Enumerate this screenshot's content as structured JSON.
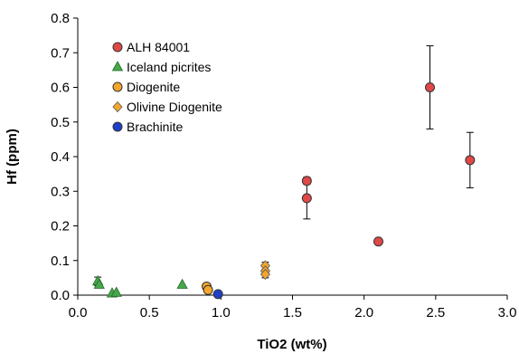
{
  "chart_data": {
    "type": "scatter",
    "title": "",
    "xlabel": "TiO2 (wt%)",
    "ylabel": "Hf (ppm)",
    "xlim": [
      0.0,
      3.0
    ],
    "ylim": [
      0.0,
      0.8
    ],
    "x_ticks": [
      "0.0",
      "0.5",
      "1.0",
      "1.5",
      "2.0",
      "2.5",
      "3.0"
    ],
    "y_ticks": [
      "0.0",
      "0.1",
      "0.2",
      "0.3",
      "0.4",
      "0.5",
      "0.6",
      "0.7",
      "0.8"
    ],
    "grid": false,
    "legend_position": "top-left",
    "series": [
      {
        "name": "ALH 84001",
        "marker": "circle",
        "color": "#e04848",
        "points": [
          {
            "x": 1.6,
            "y": 0.33,
            "err": 0.01
          },
          {
            "x": 1.6,
            "y": 0.28,
            "err": 0.06
          },
          {
            "x": 2.1,
            "y": 0.155
          },
          {
            "x": 2.46,
            "y": 0.6,
            "err": 0.12
          },
          {
            "x": 2.74,
            "y": 0.39,
            "err": 0.08
          }
        ]
      },
      {
        "name": "Iceland picrites",
        "marker": "triangle",
        "color": "#45a84a",
        "points": [
          {
            "x": 0.14,
            "y": 0.04,
            "err": 0.012
          },
          {
            "x": 0.15,
            "y": 0.03
          },
          {
            "x": 0.24,
            "y": 0.005
          },
          {
            "x": 0.27,
            "y": 0.007
          },
          {
            "x": 0.73,
            "y": 0.03
          }
        ]
      },
      {
        "name": "Diogenite",
        "marker": "circle",
        "color": "#f3a62b",
        "points": [
          {
            "x": 0.9,
            "y": 0.025
          },
          {
            "x": 0.91,
            "y": 0.015
          }
        ]
      },
      {
        "name": "Olivine Diogenite",
        "marker": "diamond",
        "color": "#f3a62b",
        "points": [
          {
            "x": 1.31,
            "y": 0.085,
            "err": 0.01
          },
          {
            "x": 1.31,
            "y": 0.07
          },
          {
            "x": 1.31,
            "y": 0.06,
            "err": 0.01
          }
        ]
      },
      {
        "name": "Brachinite",
        "marker": "circle",
        "color": "#1f3fc8",
        "points": [
          {
            "x": 0.98,
            "y": 0.003
          }
        ]
      }
    ]
  }
}
